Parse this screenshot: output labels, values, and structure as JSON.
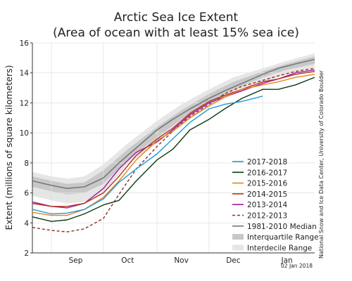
{
  "chart_data": {
    "type": "line",
    "title": "Arctic Sea Ice Extent",
    "subtitle": "(Area of ocean with at least 15% sea ice)",
    "ylabel": "Extent (millions of square kilometers)",
    "xlabel": "",
    "ylim": [
      2,
      16
    ],
    "yticks": [
      2,
      4,
      6,
      8,
      10,
      12,
      14,
      16
    ],
    "xlim": [
      "2017-08-21",
      "2018-01-31"
    ],
    "month_labels": [
      {
        "label": "Sep",
        "date": "2017-09-15"
      },
      {
        "label": "Oct",
        "date": "2017-10-15"
      },
      {
        "label": "Nov",
        "date": "2017-11-15"
      },
      {
        "label": "Dec",
        "date": "2017-12-15"
      },
      {
        "label": "Jan",
        "date": "2018-01-15"
      }
    ],
    "month_boundaries": [
      "2017-09-01",
      "2017-10-01",
      "2017-11-01",
      "2017-12-01",
      "2018-01-01"
    ],
    "grid": true,
    "legend_position": "bottom-right",
    "credit": "National Snow and Ice Data Center, University of Colorado Boulder",
    "date_stamp": "02 Jan 2018",
    "bands": [
      {
        "name": "Interdecile Range",
        "color": "#e6e6e6",
        "x": [
          "2017-08-21",
          "2017-09-01",
          "2017-09-10",
          "2017-09-20",
          "2017-10-01",
          "2017-10-15",
          "2017-11-01",
          "2017-11-15",
          "2017-12-01",
          "2017-12-15",
          "2018-01-01",
          "2018-01-15",
          "2018-01-31"
        ],
        "upper": [
          7.4,
          7.1,
          6.95,
          7.1,
          7.9,
          9.3,
          10.8,
          11.9,
          12.9,
          13.7,
          14.3,
          14.8,
          15.3
        ],
        "lower": [
          5.8,
          5.5,
          5.3,
          5.4,
          6.0,
          7.9,
          9.3,
          10.6,
          11.7,
          12.6,
          13.4,
          13.9,
          14.3
        ]
      },
      {
        "name": "Interquartile Range",
        "color": "#c8c8c8",
        "x": [
          "2017-08-21",
          "2017-09-01",
          "2017-09-10",
          "2017-09-20",
          "2017-10-01",
          "2017-10-15",
          "2017-11-01",
          "2017-11-15",
          "2017-12-01",
          "2017-12-15",
          "2018-01-01",
          "2018-01-15",
          "2018-01-31"
        ],
        "upper": [
          7.1,
          6.8,
          6.6,
          6.7,
          7.5,
          8.9,
          10.4,
          11.5,
          12.6,
          13.4,
          14.1,
          14.6,
          15.1
        ],
        "lower": [
          6.4,
          6.1,
          5.9,
          6.0,
          6.6,
          8.2,
          9.7,
          10.9,
          12.0,
          12.9,
          13.7,
          14.2,
          14.6
        ]
      }
    ],
    "series": [
      {
        "name": "2017-2018",
        "color": "#1f9bd7",
        "dash": "",
        "x": [
          "2017-08-21",
          "2017-09-01",
          "2017-09-10",
          "2017-09-20",
          "2017-10-01",
          "2017-10-10",
          "2017-10-20",
          "2017-11-01",
          "2017-11-10",
          "2017-11-20",
          "2017-12-01",
          "2017-12-10",
          "2017-12-20",
          "2018-01-01"
        ],
        "values": [
          4.9,
          4.6,
          4.65,
          4.9,
          5.6,
          6.7,
          7.6,
          8.6,
          9.6,
          10.7,
          11.6,
          11.9,
          12.1,
          12.45
        ]
      },
      {
        "name": "2016-2017",
        "color": "#0b3a14",
        "dash": "",
        "x": [
          "2017-08-21",
          "2017-09-01",
          "2017-09-10",
          "2017-09-20",
          "2017-10-01",
          "2017-10-10",
          "2017-10-20",
          "2017-11-01",
          "2017-11-10",
          "2017-11-20",
          "2017-12-01",
          "2017-12-10",
          "2017-12-20",
          "2018-01-01",
          "2018-01-10",
          "2018-01-20",
          "2018-01-31"
        ],
        "values": [
          4.4,
          4.1,
          4.2,
          4.6,
          5.2,
          5.5,
          6.8,
          8.2,
          8.9,
          10.2,
          10.9,
          11.6,
          12.3,
          12.9,
          12.9,
          13.2,
          13.7
        ]
      },
      {
        "name": "2015-2016",
        "color": "#e8811b",
        "dash": "",
        "x": [
          "2017-08-21",
          "2017-09-01",
          "2017-09-10",
          "2017-09-20",
          "2017-10-01",
          "2017-10-10",
          "2017-10-20",
          "2017-11-01",
          "2017-11-10",
          "2017-11-20",
          "2017-12-01",
          "2017-12-10",
          "2017-12-20",
          "2018-01-01",
          "2018-01-10",
          "2018-01-20",
          "2018-01-31"
        ],
        "values": [
          4.7,
          4.5,
          4.5,
          4.9,
          5.7,
          6.8,
          8.2,
          9.5,
          10.1,
          11.0,
          11.8,
          12.4,
          12.9,
          13.2,
          13.4,
          13.7,
          13.9
        ]
      },
      {
        "name": "2014-2015",
        "color": "#b2341f",
        "dash": "",
        "x": [
          "2017-08-21",
          "2017-09-01",
          "2017-09-10",
          "2017-09-20",
          "2017-10-01",
          "2017-10-10",
          "2017-10-20",
          "2017-11-01",
          "2017-11-10",
          "2017-11-20",
          "2017-12-01",
          "2017-12-10",
          "2017-12-20",
          "2018-01-01",
          "2018-01-10",
          "2018-01-20",
          "2018-01-31"
        ],
        "values": [
          5.3,
          5.1,
          5.1,
          5.3,
          6.0,
          7.1,
          8.5,
          9.6,
          10.3,
          11.3,
          12.1,
          12.5,
          12.9,
          13.4,
          13.6,
          13.9,
          14.1
        ]
      },
      {
        "name": "2013-2014",
        "color": "#a4199c",
        "dash": "",
        "x": [
          "2017-08-21",
          "2017-09-01",
          "2017-09-10",
          "2017-09-20",
          "2017-10-01",
          "2017-10-10",
          "2017-10-20",
          "2017-11-01",
          "2017-11-10",
          "2017-11-20",
          "2017-12-01",
          "2017-12-10",
          "2017-12-20",
          "2018-01-01",
          "2018-01-10",
          "2018-01-20",
          "2018-01-31"
        ],
        "values": [
          5.4,
          5.1,
          5.0,
          5.3,
          6.3,
          7.6,
          8.7,
          9.4,
          10.2,
          11.2,
          12.0,
          12.4,
          12.8,
          13.3,
          13.6,
          14.0,
          14.2
        ]
      },
      {
        "name": "2012-2013",
        "color": "#8a2e24",
        "dash": "4,3",
        "x": [
          "2017-08-21",
          "2017-09-01",
          "2017-09-10",
          "2017-09-20",
          "2017-10-01",
          "2017-10-10",
          "2017-10-20",
          "2017-11-01",
          "2017-11-10",
          "2017-11-20",
          "2017-12-01",
          "2017-12-10",
          "2017-12-20",
          "2018-01-01",
          "2018-01-10",
          "2018-01-20",
          "2018-01-31"
        ],
        "values": [
          3.7,
          3.5,
          3.4,
          3.6,
          4.3,
          5.9,
          7.6,
          9.1,
          10.1,
          11.1,
          11.9,
          12.6,
          13.1,
          13.5,
          13.8,
          14.1,
          14.3
        ]
      },
      {
        "name": "1981-2010 Median",
        "color": "#777777",
        "dash": "",
        "x": [
          "2017-08-21",
          "2017-09-01",
          "2017-09-10",
          "2017-09-20",
          "2017-10-01",
          "2017-10-10",
          "2017-10-20",
          "2017-11-01",
          "2017-11-10",
          "2017-11-20",
          "2017-12-01",
          "2017-12-10",
          "2017-12-20",
          "2018-01-01",
          "2018-01-10",
          "2018-01-20",
          "2018-01-31"
        ],
        "values": [
          6.8,
          6.5,
          6.3,
          6.4,
          7.0,
          8.0,
          9.0,
          10.2,
          10.9,
          11.6,
          12.3,
          12.8,
          13.3,
          13.9,
          14.3,
          14.6,
          14.9
        ]
      }
    ],
    "legend": [
      {
        "label": "2017-2018",
        "kind": "line",
        "color": "#1f9bd7",
        "dash": ""
      },
      {
        "label": "2016-2017",
        "kind": "line",
        "color": "#0b3a14",
        "dash": ""
      },
      {
        "label": "2015-2016",
        "kind": "line",
        "color": "#e8811b",
        "dash": ""
      },
      {
        "label": "2014-2015",
        "kind": "line",
        "color": "#b2341f",
        "dash": ""
      },
      {
        "label": "2013-2014",
        "kind": "line",
        "color": "#a4199c",
        "dash": ""
      },
      {
        "label": "2012-2013",
        "kind": "line",
        "color": "#8a2e24",
        "dash": "4,3"
      },
      {
        "label": "1981-2010 Median",
        "kind": "line",
        "color": "#777777",
        "dash": ""
      },
      {
        "label": "Interquartile Range",
        "kind": "band",
        "color": "#c8c8c8",
        "dash": ""
      },
      {
        "label": "Interdecile Range",
        "kind": "band",
        "color": "#e6e6e6",
        "dash": ""
      }
    ]
  }
}
